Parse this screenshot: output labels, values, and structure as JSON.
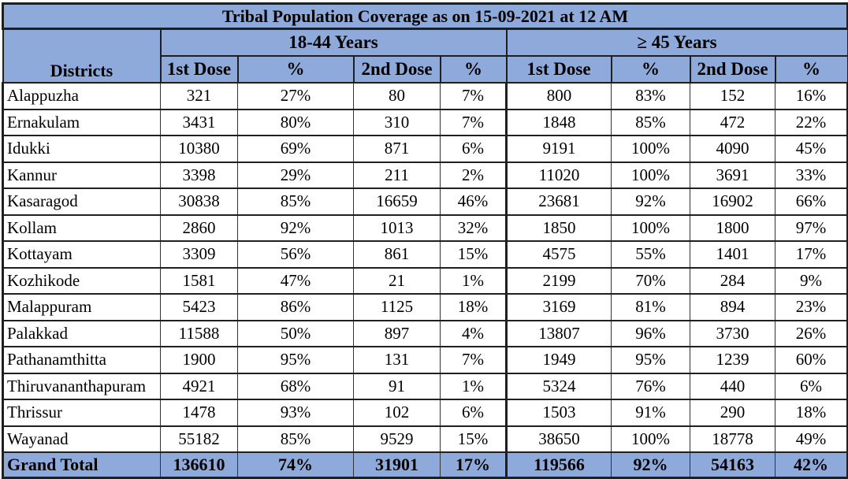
{
  "title": "Tribal Population  Coverage as on  15-09-2021  at 12 AM",
  "header": {
    "districts_label": "Districts",
    "group_1": "18-44 Years",
    "group_2": "≥ 45 Years",
    "dose_1": "1st Dose",
    "dose_2": "2nd Dose",
    "pct": "%"
  },
  "rows": [
    [
      "Alappuzha",
      "321",
      "27%",
      "80",
      "7%",
      "800",
      "83%",
      "152",
      "16%"
    ],
    [
      "Ernakulam",
      "3431",
      "80%",
      "310",
      "7%",
      "1848",
      "85%",
      "472",
      "22%"
    ],
    [
      "Idukki",
      "10380",
      "69%",
      "871",
      "6%",
      "9191",
      "100%",
      "4090",
      "45%"
    ],
    [
      "Kannur",
      "3398",
      "29%",
      "211",
      "2%",
      "11020",
      "100%",
      "3691",
      "33%"
    ],
    [
      "Kasaragod",
      "30838",
      "85%",
      "16659",
      "46%",
      "23681",
      "92%",
      "16902",
      "66%"
    ],
    [
      "Kollam",
      "2860",
      "92%",
      "1013",
      "32%",
      "1850",
      "100%",
      "1800",
      "97%"
    ],
    [
      "Kottayam",
      "3309",
      "56%",
      "861",
      "15%",
      "4575",
      "55%",
      "1401",
      "17%"
    ],
    [
      "Kozhikode",
      "1581",
      "47%",
      "21",
      "1%",
      "2199",
      "70%",
      "284",
      "9%"
    ],
    [
      "Malappuram",
      "5423",
      "86%",
      "1125",
      "18%",
      "3169",
      "81%",
      "894",
      "23%"
    ],
    [
      "Palakkad",
      "11588",
      "50%",
      "897",
      "4%",
      "13807",
      "96%",
      "3730",
      "26%"
    ],
    [
      "Pathanamthitta",
      "1900",
      "95%",
      "131",
      "7%",
      "1949",
      "95%",
      "1239",
      "60%"
    ],
    [
      "Thiruvananthapuram",
      "4921",
      "68%",
      "91",
      "1%",
      "5324",
      "76%",
      "440",
      "6%"
    ],
    [
      "Thrissur",
      "1478",
      "93%",
      "102",
      "6%",
      "1503",
      "91%",
      "290",
      "18%"
    ],
    [
      "Wayanad",
      "55182",
      "85%",
      "9529",
      "15%",
      "38650",
      "100%",
      "18778",
      "49%"
    ]
  ],
  "total": [
    "Grand Total",
    "136610",
    "74%",
    "31901",
    "17%",
    "119566",
    "92%",
    "54163",
    "42%"
  ],
  "colors": {
    "header_bg": "#8eaadb",
    "border": "#1f1f1f"
  }
}
